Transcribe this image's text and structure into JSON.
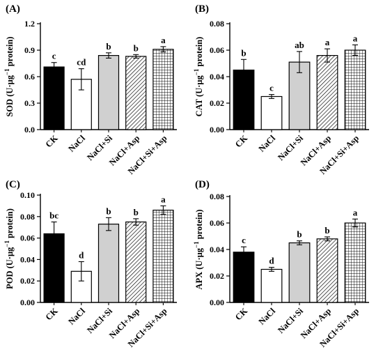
{
  "chart_data": [
    {
      "type": "bar",
      "panel": "(A)",
      "ylabel_prefix": "SOD (U·",
      "ylabel_unit": "μg",
      "ylabel_exp": "−1",
      "ylabel_suffix": " protein)",
      "categories": [
        "CK",
        "NaCl",
        "NaCl+Si",
        "NaCl+Asp",
        "NaCl+Si+Asp"
      ],
      "values": [
        0.71,
        0.57,
        0.84,
        0.83,
        0.91
      ],
      "errors": [
        0.05,
        0.12,
        0.03,
        0.02,
        0.03
      ],
      "significance": [
        "c",
        "cd",
        "b",
        "b",
        "a"
      ],
      "ylim": [
        0,
        1.2
      ],
      "yticks": [
        "0.0",
        "0.3",
        "0.6",
        "0.9",
        "1.2"
      ],
      "ytick_values": [
        0,
        0.3,
        0.6,
        0.9,
        1.2
      ]
    },
    {
      "type": "bar",
      "panel": "(B)",
      "ylabel_prefix": "CAT (U·",
      "ylabel_unit": "μg",
      "ylabel_exp": "−1",
      "ylabel_suffix": " protein)",
      "categories": [
        "CK",
        "NaCl",
        "NaCl+Si",
        "NaCl+Asp",
        "NaCl+Si+Asp"
      ],
      "values": [
        0.045,
        0.025,
        0.051,
        0.056,
        0.06
      ],
      "errors": [
        0.008,
        0.0015,
        0.008,
        0.005,
        0.004
      ],
      "significance": [
        "b",
        "c",
        "ab",
        "a",
        "a"
      ],
      "ylim": [
        0,
        0.08
      ],
      "yticks": [
        "0.00",
        "0.02",
        "0.04",
        "0.06",
        "0.08"
      ],
      "ytick_values": [
        0,
        0.02,
        0.04,
        0.06,
        0.08
      ]
    },
    {
      "type": "bar",
      "panel": "(C)",
      "ylabel_prefix": "POD (U·",
      "ylabel_unit": "μg",
      "ylabel_exp": "−1",
      "ylabel_suffix": " protein)",
      "categories": [
        "CK",
        "NaCl",
        "NaCl+Si",
        "NaCl+Asp",
        "NaCl+Si+Asp"
      ],
      "values": [
        0.064,
        0.029,
        0.073,
        0.075,
        0.086
      ],
      "errors": [
        0.011,
        0.009,
        0.006,
        0.003,
        0.004
      ],
      "significance": [
        "bc",
        "d",
        "b",
        "b",
        "a"
      ],
      "ylim": [
        0,
        0.1
      ],
      "yticks": [
        "0.00",
        "0.02",
        "0.04",
        "0.06",
        "0.08",
        "0.10"
      ],
      "ytick_values": [
        0,
        0.02,
        0.04,
        0.06,
        0.08,
        0.1
      ]
    },
    {
      "type": "bar",
      "panel": "(D)",
      "ylabel_prefix": "APX (U·",
      "ylabel_unit": "μg",
      "ylabel_exp": "−1",
      "ylabel_suffix": " protein)",
      "categories": [
        "CK",
        "NaCl",
        "NaCl+Si",
        "NaCl+Asp",
        "NaCl+Si+Asp"
      ],
      "values": [
        0.038,
        0.025,
        0.045,
        0.048,
        0.06
      ],
      "errors": [
        0.004,
        0.0015,
        0.0015,
        0.0015,
        0.003
      ],
      "significance": [
        "c",
        "d",
        "b",
        "b",
        "a"
      ],
      "ylim": [
        0,
        0.08
      ],
      "yticks": [
        "0.00",
        "0.02",
        "0.04",
        "0.06",
        "0.08"
      ],
      "ytick_values": [
        0,
        0.02,
        0.04,
        0.06,
        0.08
      ]
    }
  ],
  "styles": {
    "bar_fills": [
      "solid-black",
      "white",
      "light-gray",
      "diagonal-hatch",
      "grid-hatch"
    ],
    "gray_color": "#d0d0d0"
  }
}
